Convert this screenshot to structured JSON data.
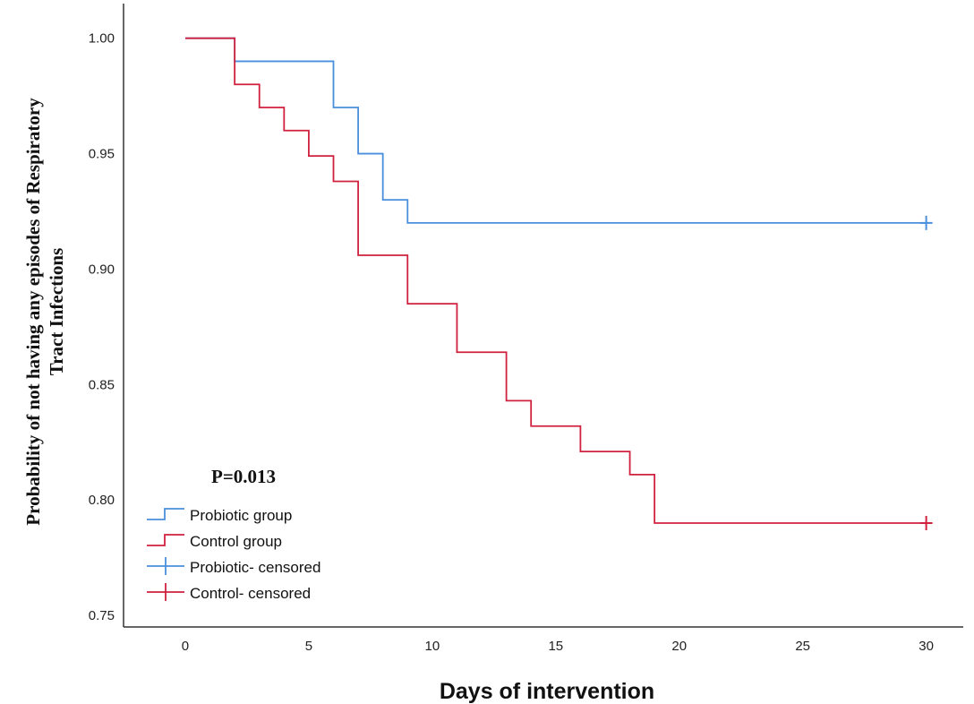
{
  "chart_data": {
    "type": "line",
    "subtype": "kaplan-meier step",
    "title": "",
    "xlabel": "Days of intervention",
    "ylabel_lines": [
      "Probability of not having any episodes of Respiratory",
      "Tract Infections"
    ],
    "xlim": [
      -2.5,
      31.5
    ],
    "ylim": [
      0.745,
      1.015
    ],
    "xticks": [
      0,
      5,
      10,
      15,
      20,
      25,
      30
    ],
    "yticks": [
      1.0,
      0.95,
      0.9,
      0.85,
      0.8,
      0.75
    ],
    "yticklabels": [
      "1.00",
      "0.95",
      "0.90",
      "0.85",
      "0.80",
      "0.75"
    ],
    "annotation": "P=0.013",
    "legend_position": "bottom-left",
    "series": [
      {
        "name": "Probiotic group",
        "color": "#4a8fdc",
        "steps": [
          [
            0,
            1.0
          ],
          [
            2,
            0.99
          ],
          [
            6,
            0.97
          ],
          [
            7,
            0.95
          ],
          [
            8,
            0.93
          ],
          [
            9,
            0.92
          ]
        ],
        "end_x": 30,
        "censored": [
          [
            30,
            0.92
          ]
        ],
        "censored_label": "Probiotic- censored"
      },
      {
        "name": "Control group",
        "color": "#d0213f",
        "steps": [
          [
            0,
            1.0
          ],
          [
            2,
            0.98
          ],
          [
            3,
            0.97
          ],
          [
            4,
            0.96
          ],
          [
            5,
            0.949
          ],
          [
            6,
            0.938
          ],
          [
            7,
            0.906
          ],
          [
            9,
            0.885
          ],
          [
            11,
            0.864
          ],
          [
            13,
            0.843
          ],
          [
            14,
            0.832
          ],
          [
            16,
            0.821
          ],
          [
            18,
            0.811
          ],
          [
            19,
            0.79
          ]
        ],
        "end_x": 30,
        "censored": [
          [
            30,
            0.79
          ]
        ],
        "censored_label": "Control- censored"
      }
    ]
  }
}
